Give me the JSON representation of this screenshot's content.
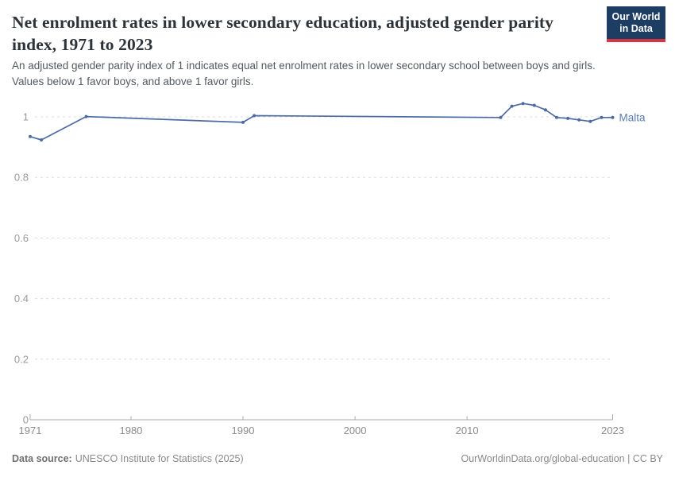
{
  "header": {
    "title": "Net enrolment rates in lower secondary education, adjusted gender parity index, 1971 to 2023",
    "subtitle": "An adjusted gender parity index of 1 indicates equal net enrolment rates in lower secondary school between boys and girls. Values below 1 favor boys, and above 1 favor girls."
  },
  "logo": {
    "line1": "Our World",
    "line2": "in Data"
  },
  "footer": {
    "datasource_label": "Data source:",
    "datasource_value": "UNESCO Institute for Statistics (2025)",
    "right": "OurWorldinData.org/global-education | CC BY"
  },
  "colors": {
    "line": "#4d6ba3",
    "series_label": "#5b7db3",
    "grid": "#dcdcdc",
    "axis": "#a8a8a8",
    "logo_bg": "#1d3d63",
    "logo_red": "#d23742"
  },
  "chart_data": {
    "type": "line",
    "title": "Net enrolment rates in lower secondary education, adjusted gender parity index, 1971 to 2023",
    "xlabel": "",
    "ylabel": "",
    "xlim": [
      1971,
      2023
    ],
    "ylim": [
      0,
      1.05
    ],
    "grid": true,
    "legend_position": "end-of-line",
    "xticks": [
      {
        "year": 1971,
        "label": "1971"
      },
      {
        "year": 1980,
        "label": "1980"
      },
      {
        "year": 1990,
        "label": "1990"
      },
      {
        "year": 2000,
        "label": "2000"
      },
      {
        "year": 2010,
        "label": "2010"
      },
      {
        "year": 2023,
        "label": "2023"
      }
    ],
    "yticks": [
      {
        "v": 0,
        "label": "0"
      },
      {
        "v": 0.2,
        "label": "0.2"
      },
      {
        "v": 0.4,
        "label": "0.4"
      },
      {
        "v": 0.6,
        "label": "0.6"
      },
      {
        "v": 0.8,
        "label": "0.8"
      },
      {
        "v": 1,
        "label": "1"
      }
    ],
    "series": [
      {
        "name": "Malta",
        "color": "#4d6ba3",
        "points": [
          {
            "year": 1971,
            "value": 0.935
          },
          {
            "year": 1972,
            "value": 0.924
          },
          {
            "year": 1976,
            "value": 1.001
          },
          {
            "year": 1990,
            "value": 0.982
          },
          {
            "year": 1991,
            "value": 1.004
          },
          {
            "year": 2013,
            "value": 0.998
          },
          {
            "year": 2014,
            "value": 1.035
          },
          {
            "year": 2015,
            "value": 1.044
          },
          {
            "year": 2016,
            "value": 1.038
          },
          {
            "year": 2017,
            "value": 1.023
          },
          {
            "year": 2018,
            "value": 0.998
          },
          {
            "year": 2019,
            "value": 0.995
          },
          {
            "year": 2020,
            "value": 0.99
          },
          {
            "year": 2021,
            "value": 0.985
          },
          {
            "year": 2022,
            "value": 0.998
          },
          {
            "year": 2023,
            "value": 0.998
          }
        ]
      }
    ]
  }
}
